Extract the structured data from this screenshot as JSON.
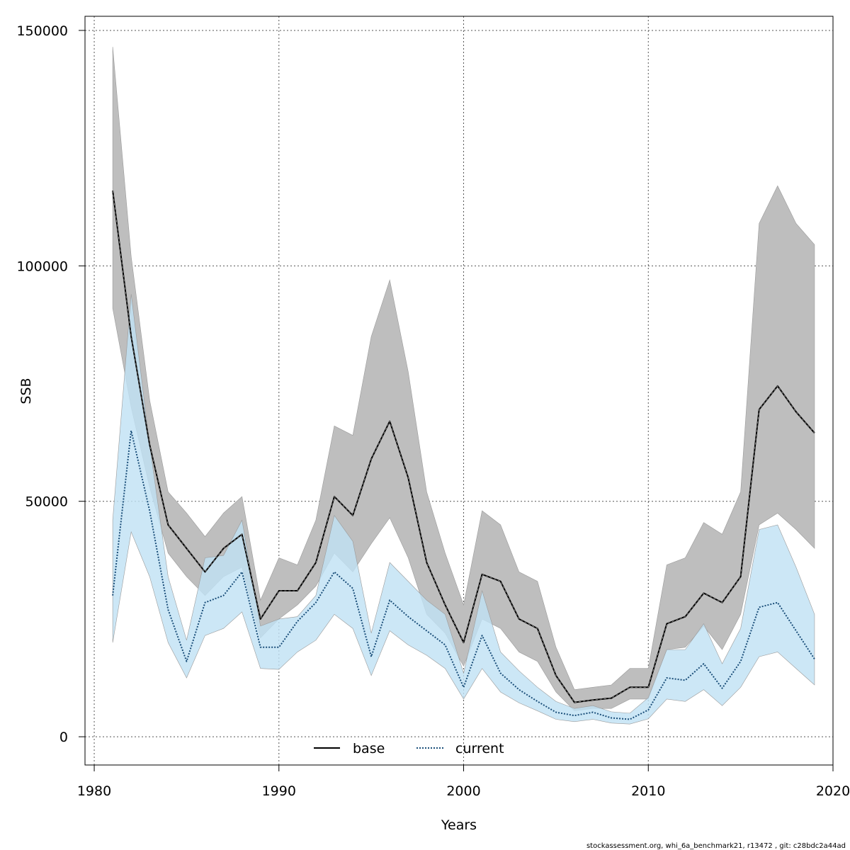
{
  "footer": "stockassessment.org, whi_6a_benchmark21, r13472 , git: c28bdc2a44ad",
  "chart_data": {
    "type": "line",
    "xlabel": "Years",
    "ylabel": "SSB",
    "xlim": [
      1979.5,
      2020
    ],
    "ylim": [
      -6000,
      153000
    ],
    "x_ticks": [
      1980,
      1990,
      2000,
      2010,
      2020
    ],
    "x_tick_labels": [
      "1980",
      "1990",
      "2000",
      "2010",
      "2020"
    ],
    "y_ticks": [
      0,
      50000,
      100000,
      150000
    ],
    "y_tick_labels": [
      "0",
      "50000",
      "100000",
      "150000"
    ],
    "grid": true,
    "legend": {
      "position": "bottom-center",
      "entries": [
        "base",
        "current"
      ]
    },
    "x": [
      1981,
      1982,
      1983,
      1984,
      1985,
      1986,
      1987,
      1988,
      1989,
      1990,
      1991,
      1992,
      1993,
      1994,
      1995,
      1996,
      1997,
      1998,
      1999,
      2000,
      2001,
      2002,
      2003,
      2004,
      2005,
      2006,
      2007,
      2008,
      2009,
      2010,
      2011,
      2012,
      2013,
      2014,
      2015,
      2016,
      2017,
      2018,
      2019
    ],
    "series": [
      {
        "name": "base",
        "color": "#000000",
        "band_color": "#bebebe",
        "line_style": "solid",
        "values": [
          116000,
          85000,
          62000,
          45000,
          40000,
          35000,
          40000,
          43000,
          25000,
          31000,
          31000,
          37000,
          51000,
          47000,
          59000,
          67000,
          55000,
          37000,
          28000,
          20000,
          34500,
          33000,
          25000,
          23000,
          13000,
          7300,
          7800,
          8200,
          10500,
          10500,
          24000,
          25500,
          30500,
          28500,
          34000,
          69500,
          74500,
          69000,
          64500
        ],
        "lower": [
          91000,
          70000,
          53000,
          39000,
          34000,
          30000,
          34000,
          36000,
          21000,
          25000,
          28000,
          32000,
          39000,
          35000,
          41000,
          46500,
          38000,
          26000,
          22000,
          15000,
          25000,
          23000,
          18000,
          16000,
          9500,
          5500,
          6000,
          6000,
          8000,
          8000,
          18500,
          19000,
          23500,
          18500,
          26000,
          45000,
          47500,
          44000,
          40000
        ],
        "upper": [
          146500,
          102000,
          71500,
          52000,
          47500,
          42500,
          47500,
          51000,
          29000,
          38000,
          36500,
          46000,
          66000,
          64000,
          85000,
          97000,
          77500,
          52000,
          39000,
          28000,
          48000,
          45000,
          35000,
          33000,
          19000,
          10000,
          10500,
          11000,
          14500,
          14500,
          36500,
          38000,
          45500,
          43000,
          52000,
          109000,
          117000,
          109000,
          104500
        ]
      },
      {
        "name": "current",
        "color": "#1b4f7a",
        "band_color": "#c1e2f4",
        "line_style": "dotted",
        "values": [
          30000,
          65000,
          48000,
          27000,
          16000,
          28500,
          30000,
          35000,
          19000,
          19000,
          24500,
          28500,
          35000,
          31500,
          17000,
          29000,
          25500,
          22500,
          19500,
          10500,
          21500,
          13500,
          10000,
          7500,
          5200,
          4500,
          5200,
          4000,
          3700,
          5700,
          12500,
          12000,
          15500,
          10300,
          16000,
          27500,
          28500,
          22500,
          16500
        ],
        "lower": [
          20000,
          43500,
          34000,
          20000,
          12500,
          21500,
          23000,
          26500,
          14500,
          14300,
          18000,
          20500,
          26000,
          23000,
          13000,
          22500,
          19500,
          17300,
          14500,
          8000,
          14500,
          9500,
          7200,
          5500,
          3700,
          3200,
          3700,
          2900,
          2700,
          3800,
          8000,
          7500,
          10000,
          6600,
          10500,
          17000,
          18000,
          14500,
          11000
        ],
        "upper": [
          46000,
          94000,
          62000,
          34000,
          20500,
          38000,
          38500,
          46000,
          23500,
          25000,
          25500,
          30000,
          47000,
          41500,
          22000,
          37000,
          33000,
          29000,
          26000,
          13500,
          31000,
          18000,
          14000,
          10500,
          7500,
          6000,
          6600,
          5300,
          5000,
          8300,
          18500,
          18500,
          24000,
          15500,
          23000,
          44000,
          45000,
          36000,
          26000
        ]
      }
    ]
  }
}
